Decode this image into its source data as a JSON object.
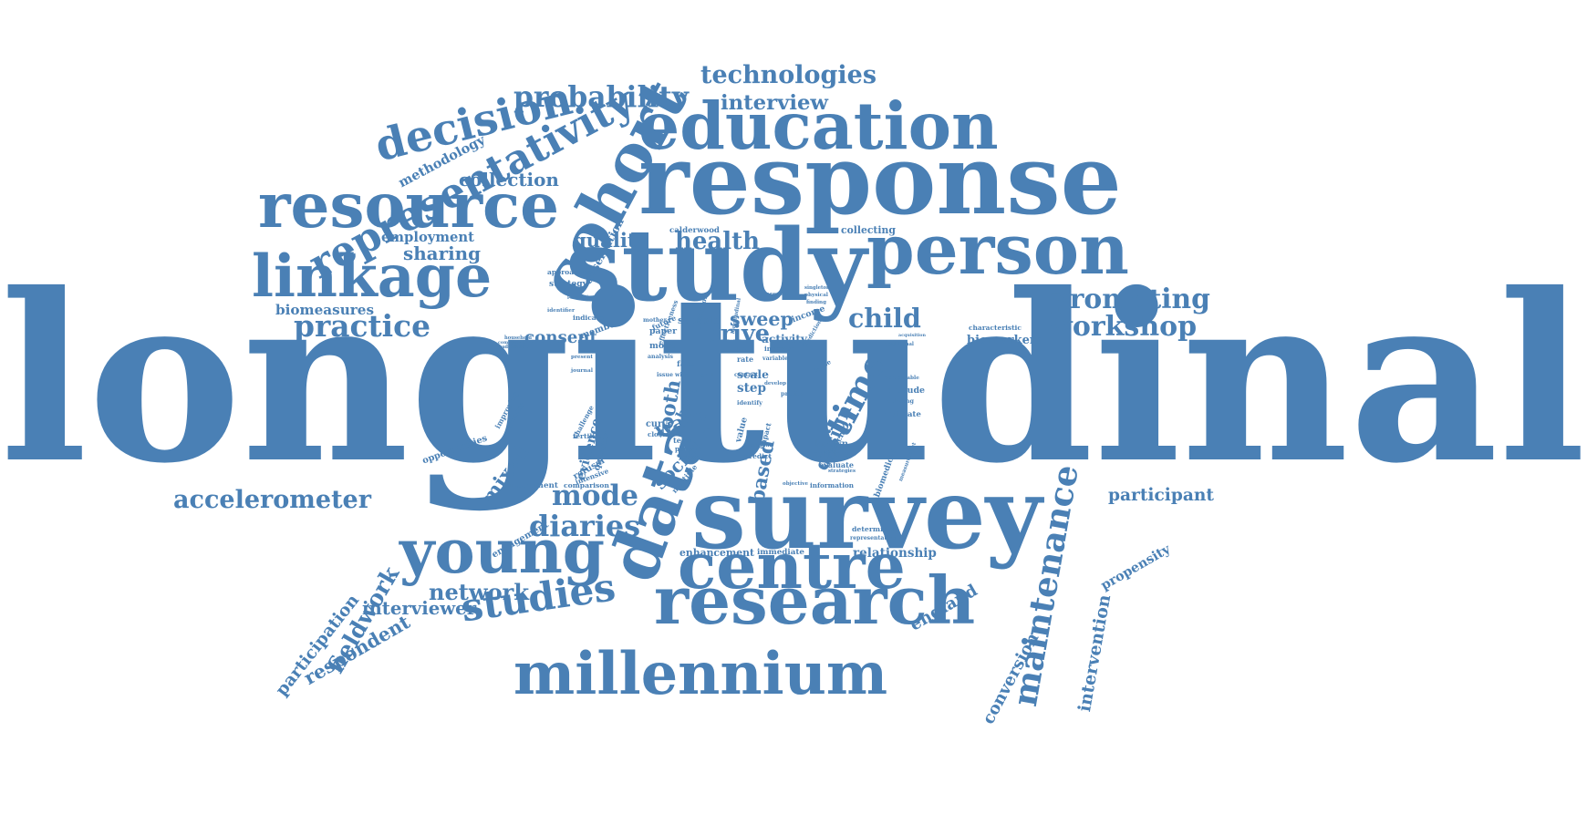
{
  "cloud": {
    "color": "#4a80b5",
    "background": "#ffffff",
    "words": [
      {
        "text": "longitudinal"
      },
      {
        "text": "response"
      },
      {
        "text": "study"
      },
      {
        "text": "education"
      },
      {
        "text": "person"
      },
      {
        "text": "survey"
      },
      {
        "text": "research"
      },
      {
        "text": "centre"
      },
      {
        "text": "millennium"
      },
      {
        "text": "cohort"
      },
      {
        "text": "data"
      },
      {
        "text": "young"
      },
      {
        "text": "resource"
      },
      {
        "text": "linkage"
      },
      {
        "text": "decision"
      },
      {
        "text": "representativity"
      },
      {
        "text": "probability"
      },
      {
        "text": "technologies"
      },
      {
        "text": "interview"
      },
      {
        "text": "studies"
      },
      {
        "text": "maintenance"
      },
      {
        "text": "practice"
      },
      {
        "text": "promoting"
      },
      {
        "text": "workshop"
      },
      {
        "text": "accelerometer"
      },
      {
        "text": "health"
      },
      {
        "text": "time"
      },
      {
        "text": "child"
      },
      {
        "text": "mode"
      },
      {
        "text": "diaries"
      },
      {
        "text": "fieldwork"
      },
      {
        "text": "respondent"
      },
      {
        "text": "network"
      },
      {
        "text": "interviewer"
      },
      {
        "text": "england"
      },
      {
        "text": "conversion"
      },
      {
        "text": "intervention"
      },
      {
        "text": "participant"
      },
      {
        "text": "propensity"
      },
      {
        "text": "participation"
      },
      {
        "text": "sharing"
      },
      {
        "text": "collection"
      },
      {
        "text": "methodology"
      },
      {
        "text": "employment"
      },
      {
        "text": "biomeasures"
      },
      {
        "text": "quality"
      },
      {
        "text": "observation"
      },
      {
        "text": "consent"
      },
      {
        "text": "drive"
      },
      {
        "text": "sweep"
      },
      {
        "text": "activity"
      },
      {
        "text": "design"
      },
      {
        "text": "mixed"
      },
      {
        "text": "evidence"
      },
      {
        "text": "tooth"
      },
      {
        "text": "wave"
      },
      {
        "text": "social"
      },
      {
        "text": "based"
      },
      {
        "text": "scale"
      },
      {
        "text": "step"
      },
      {
        "text": "best"
      },
      {
        "text": "biomarkers"
      },
      {
        "text": "collecting"
      },
      {
        "text": "calderwood"
      },
      {
        "text": "relationship"
      },
      {
        "text": "enhancement"
      },
      {
        "text": "immediate"
      },
      {
        "text": "engagement"
      },
      {
        "text": "comparison"
      },
      {
        "text": "instrument"
      },
      {
        "text": "opportunities"
      },
      {
        "text": "fertility"
      },
      {
        "text": "refusal"
      },
      {
        "text": "attitude"
      },
      {
        "text": "estimate"
      },
      {
        "text": "known"
      },
      {
        "text": "reliable"
      },
      {
        "text": "evaluate"
      },
      {
        "text": "determined"
      },
      {
        "text": "representative"
      },
      {
        "text": "information"
      },
      {
        "text": "approaches"
      },
      {
        "text": "strategy"
      },
      {
        "text": "indicator"
      },
      {
        "text": "member"
      },
      {
        "text": "sample"
      },
      {
        "text": "paper"
      },
      {
        "text": "future"
      },
      {
        "text": "model"
      },
      {
        "text": "income"
      },
      {
        "text": "curve"
      },
      {
        "text": "closer"
      },
      {
        "text": "postal"
      },
      {
        "text": "multiple"
      },
      {
        "text": "predict"
      },
      {
        "text": "approach"
      },
      {
        "text": "biomedical"
      },
      {
        "text": "improving"
      },
      {
        "text": "evaluating"
      },
      {
        "text": "question"
      },
      {
        "text": "challenge"
      },
      {
        "text": "effectiveness"
      },
      {
        "text": "predictor"
      },
      {
        "text": "longitudinal"
      },
      {
        "text": "physical"
      },
      {
        "text": "finding"
      },
      {
        "text": "comparable"
      },
      {
        "text": "reducing"
      },
      {
        "text": "journal"
      },
      {
        "text": "characteristic"
      },
      {
        "text": "acquisition"
      },
      {
        "text": "traditional"
      },
      {
        "text": "household"
      },
      {
        "text": "population"
      },
      {
        "text": "additional"
      },
      {
        "text": "component"
      },
      {
        "text": "intensive"
      },
      {
        "text": "objective"
      },
      {
        "text": "different"
      },
      {
        "text": "strategies"
      },
      {
        "text": "measurement"
      },
      {
        "text": "source"
      },
      {
        "text": "impact"
      },
      {
        "text": "value"
      },
      {
        "text": "rate"
      },
      {
        "text": "face"
      },
      {
        "text": "term"
      },
      {
        "text": "bias"
      },
      {
        "text": "contact"
      },
      {
        "text": "nurse"
      },
      {
        "text": "increase"
      },
      {
        "text": "mother"
      },
      {
        "text": "account"
      },
      {
        "text": "singleton"
      },
      {
        "text": "variable"
      },
      {
        "text": "present"
      },
      {
        "text": "identifier"
      },
      {
        "text": "prediction"
      },
      {
        "text": "profile"
      },
      {
        "text": "identify"
      },
      {
        "text": "develop"
      },
      {
        "text": "issue"
      },
      {
        "text": "analysis"
      },
      {
        "text": "wide"
      },
      {
        "text": "cell"
      }
    ]
  }
}
